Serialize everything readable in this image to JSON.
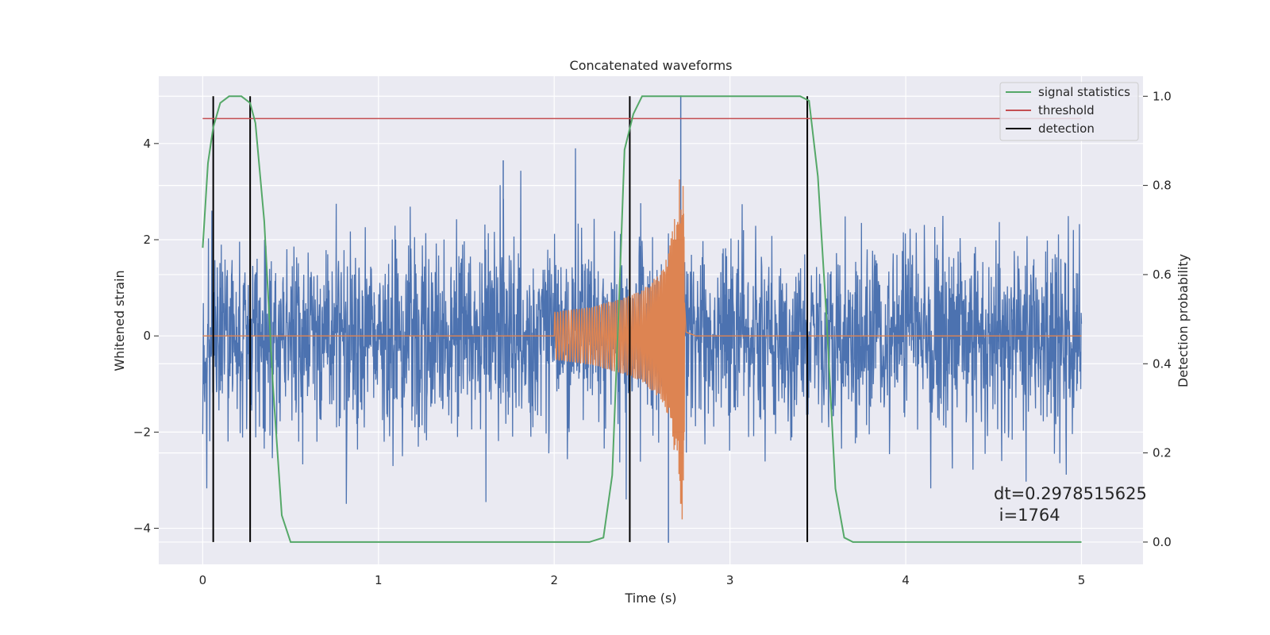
{
  "chart_data": {
    "type": "line",
    "title": "Concatenated waveforms",
    "xlabel": "Time (s)",
    "ylabel": "Whitened strain",
    "ylabel_right": "Detection probability",
    "xlim": [
      -0.25,
      5.35
    ],
    "ylim": [
      -4.75,
      5.4
    ],
    "ylim_right": [
      -0.05,
      1.045
    ],
    "x_ticks": [
      0,
      1,
      2,
      3,
      4,
      5
    ],
    "y_ticks": [
      -4,
      -2,
      0,
      2,
      4
    ],
    "y_ticks_right": [
      0.0,
      0.2,
      0.4,
      0.6,
      0.8,
      1.0
    ],
    "grid": true,
    "legend_position": "top-right",
    "series": [
      {
        "name": "",
        "axis": "left",
        "color": "#4c72b0",
        "kind": "noise",
        "x_range": [
          0,
          5
        ],
        "typical_amplitude": 1.3,
        "peak_range": [
          -4.3,
          5.0
        ]
      },
      {
        "name": "",
        "axis": "left",
        "color": "#dd8452",
        "kind": "chirp",
        "x": [
          0,
          2,
          2.2,
          2.4,
          2.5,
          2.6,
          2.65,
          2.7,
          2.73,
          2.75,
          2.8,
          5
        ],
        "envelope": [
          0,
          0.5,
          0.6,
          0.8,
          0.95,
          1.3,
          1.7,
          2.8,
          3.9,
          0.2,
          0.02,
          0
        ]
      },
      {
        "name": "signal statistics",
        "axis": "right",
        "color": "#55a868",
        "x": [
          0,
          0.03,
          0.06,
          0.1,
          0.15,
          0.22,
          0.27,
          0.3,
          0.35,
          0.4,
          0.45,
          0.5,
          1.0,
          2.0,
          2.2,
          2.28,
          2.33,
          2.37,
          2.4,
          2.45,
          2.5,
          2.6,
          3.0,
          3.4,
          3.45,
          3.5,
          3.55,
          3.6,
          3.65,
          3.7,
          5.0
        ],
        "y": [
          0.66,
          0.85,
          0.93,
          0.985,
          1.0,
          1.0,
          0.985,
          0.94,
          0.72,
          0.35,
          0.06,
          0.0,
          0.0,
          0.0,
          0.0,
          0.01,
          0.15,
          0.55,
          0.88,
          0.96,
          1.0,
          1.0,
          1.0,
          1.0,
          0.99,
          0.82,
          0.5,
          0.12,
          0.01,
          0.0,
          0.0
        ]
      },
      {
        "name": "threshold",
        "axis": "right",
        "color": "#c44e52",
        "x": [
          0,
          5
        ],
        "y": [
          0.95,
          0.95
        ]
      },
      {
        "name": "detection",
        "axis": "right",
        "color": "#000000",
        "kind": "vertical-lines",
        "x": [
          0.06,
          0.27,
          2.43,
          3.44
        ],
        "y_range": [
          0,
          1
        ]
      }
    ],
    "annotation": {
      "line1": "dt=0.2978515625",
      "line2": " i=1764",
      "x": 4.51,
      "y": 0.1
    }
  }
}
